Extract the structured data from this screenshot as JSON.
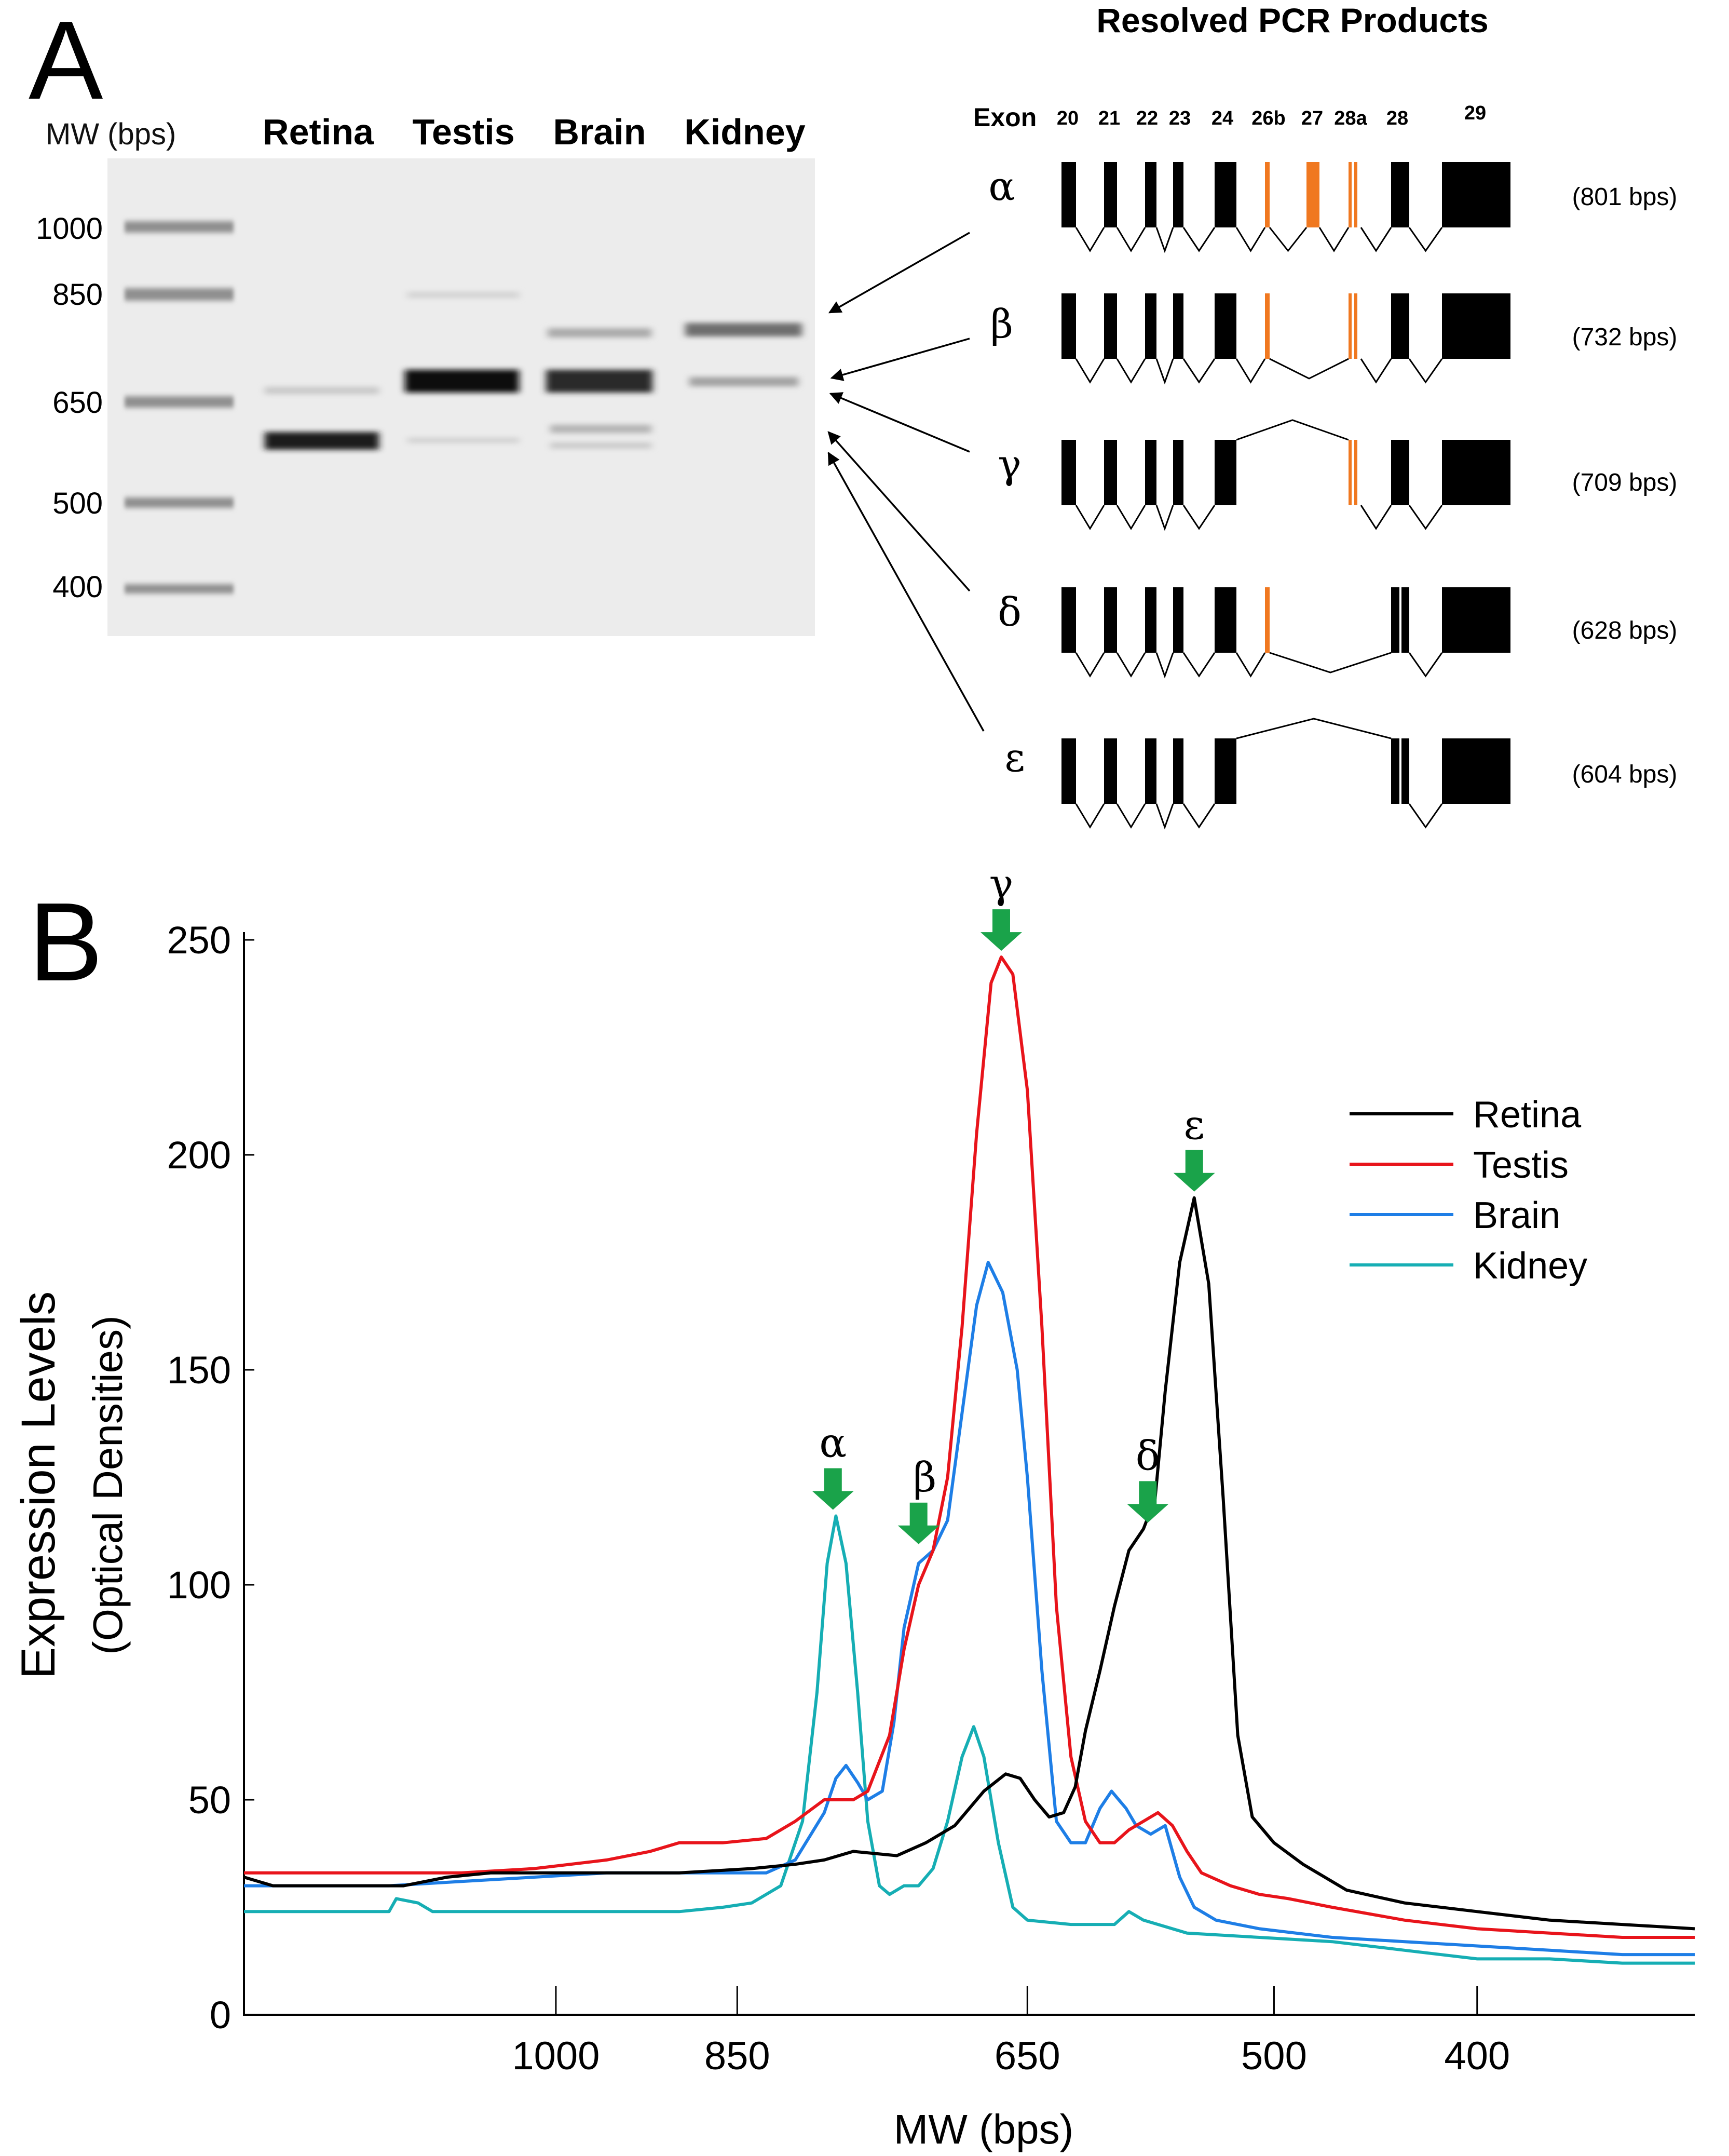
{
  "panelA": {
    "letter": "A",
    "mw_label": "MW (bps)",
    "lanes": [
      "Retina",
      "Testis",
      "Brain",
      "Kidney"
    ],
    "ladder": [
      "1000",
      "850",
      "650",
      "500",
      "400"
    ],
    "diagram_title": "Resolved PCR Products",
    "exon_label": "Exon",
    "exons": [
      "20",
      "21",
      "22",
      "23",
      "24",
      "26b",
      "27",
      "28a",
      "28",
      "29"
    ],
    "products": [
      {
        "symbol": "α",
        "size": "(801 bps)"
      },
      {
        "symbol": "β",
        "size": "(732 bps)"
      },
      {
        "symbol": "γ",
        "size": "(709 bps)"
      },
      {
        "symbol": "δ",
        "size": "(628 bps)"
      },
      {
        "symbol": "ε",
        "size": "(604 bps)"
      }
    ],
    "colors": {
      "exon": "#000000",
      "alt_exon": "#f07820"
    }
  },
  "panelB": {
    "letter": "B",
    "peak_labels": [
      "α",
      "β",
      "γ",
      "δ",
      "ε"
    ],
    "arrow_color": "#1aa34a"
  },
  "chart_data": {
    "type": "line",
    "xlabel": "MW (bps)",
    "ylabel": "Expression Levels",
    "ylabel2": "(Optical Densities)",
    "x_ticks": [
      "1000",
      "850",
      "650",
      "500",
      "400"
    ],
    "y_ticks": [
      "0",
      "50",
      "100",
      "150",
      "200",
      "250"
    ],
    "ylim": [
      0,
      250
    ],
    "grid": false,
    "legend_position": "right",
    "x_unit": "lane position (0 = left end of axis, 100 = right end; MW ticks at 21.5, 34, 54, 71, 85)",
    "series": [
      {
        "name": "Retina",
        "color": "#000000",
        "points": [
          [
            0,
            32
          ],
          [
            2,
            30
          ],
          [
            5,
            30
          ],
          [
            8,
            30
          ],
          [
            11,
            30
          ],
          [
            14,
            32
          ],
          [
            17,
            33
          ],
          [
            20,
            33
          ],
          [
            25,
            33
          ],
          [
            30,
            33
          ],
          [
            35,
            34
          ],
          [
            38,
            35
          ],
          [
            40,
            36
          ],
          [
            42,
            38
          ],
          [
            45,
            37
          ],
          [
            47,
            40
          ],
          [
            49,
            44
          ],
          [
            51,
            52
          ],
          [
            52.5,
            56
          ],
          [
            53.5,
            55
          ],
          [
            54.5,
            50
          ],
          [
            55.5,
            46
          ],
          [
            56.5,
            47
          ],
          [
            57.3,
            53
          ],
          [
            58,
            66
          ],
          [
            59,
            80
          ],
          [
            60,
            95
          ],
          [
            61,
            108
          ],
          [
            62,
            113
          ],
          [
            62.8,
            120
          ],
          [
            63.5,
            145
          ],
          [
            64.5,
            175
          ],
          [
            65.5,
            190
          ],
          [
            66.5,
            170
          ],
          [
            67.5,
            120
          ],
          [
            68.5,
            65
          ],
          [
            69.5,
            46
          ],
          [
            71,
            40
          ],
          [
            73,
            35
          ],
          [
            76,
            29
          ],
          [
            80,
            26
          ],
          [
            85,
            24
          ],
          [
            90,
            22
          ],
          [
            95,
            21
          ],
          [
            100,
            20
          ]
        ]
      },
      {
        "name": "Testis",
        "color": "#e8141b",
        "points": [
          [
            0,
            33
          ],
          [
            5,
            33
          ],
          [
            10,
            33
          ],
          [
            15,
            33
          ],
          [
            20,
            34
          ],
          [
            25,
            36
          ],
          [
            28,
            38
          ],
          [
            30,
            40
          ],
          [
            33,
            40
          ],
          [
            36,
            41
          ],
          [
            38,
            45
          ],
          [
            40,
            50
          ],
          [
            42,
            50
          ],
          [
            43,
            52
          ],
          [
            44.5,
            65
          ],
          [
            45.5,
            85
          ],
          [
            46.5,
            100
          ],
          [
            47.5,
            108
          ],
          [
            48.5,
            125
          ],
          [
            49.5,
            160
          ],
          [
            50.5,
            205
          ],
          [
            51.5,
            240
          ],
          [
            52.2,
            246
          ],
          [
            53,
            242
          ],
          [
            54,
            215
          ],
          [
            55,
            160
          ],
          [
            56,
            95
          ],
          [
            57,
            60
          ],
          [
            58,
            45
          ],
          [
            59,
            40
          ],
          [
            60,
            40
          ],
          [
            61,
            43
          ],
          [
            62,
            45
          ],
          [
            63,
            47
          ],
          [
            64,
            44
          ],
          [
            65,
            38
          ],
          [
            66,
            33
          ],
          [
            68,
            30
          ],
          [
            70,
            28
          ],
          [
            72,
            27
          ],
          [
            75,
            25
          ],
          [
            80,
            22
          ],
          [
            85,
            20
          ],
          [
            90,
            19
          ],
          [
            95,
            18
          ],
          [
            100,
            18
          ]
        ]
      },
      {
        "name": "Brain",
        "color": "#1e7ee6",
        "points": [
          [
            0,
            30
          ],
          [
            5,
            30
          ],
          [
            10,
            30
          ],
          [
            15,
            31
          ],
          [
            20,
            32
          ],
          [
            25,
            33
          ],
          [
            28,
            33
          ],
          [
            32,
            33
          ],
          [
            36,
            33
          ],
          [
            38,
            36
          ],
          [
            40,
            47
          ],
          [
            40.8,
            55
          ],
          [
            41.5,
            58
          ],
          [
            42.3,
            54
          ],
          [
            43,
            50
          ],
          [
            44,
            52
          ],
          [
            44.8,
            68
          ],
          [
            45.5,
            90
          ],
          [
            46.5,
            105
          ],
          [
            47.5,
            108
          ],
          [
            48.5,
            115
          ],
          [
            49.5,
            140
          ],
          [
            50.5,
            165
          ],
          [
            51.3,
            175
          ],
          [
            52.3,
            168
          ],
          [
            53.3,
            150
          ],
          [
            54,
            125
          ],
          [
            55,
            80
          ],
          [
            56,
            45
          ],
          [
            57,
            40
          ],
          [
            58,
            40
          ],
          [
            59,
            48
          ],
          [
            59.8,
            52
          ],
          [
            60.8,
            48
          ],
          [
            61.5,
            44
          ],
          [
            62.5,
            42
          ],
          [
            63.5,
            44
          ],
          [
            64.5,
            32
          ],
          [
            65.5,
            25
          ],
          [
            67,
            22
          ],
          [
            70,
            20
          ],
          [
            75,
            18
          ],
          [
            80,
            17
          ],
          [
            85,
            16
          ],
          [
            90,
            15
          ],
          [
            95,
            14
          ],
          [
            100,
            14
          ]
        ]
      },
      {
        "name": "Kidney",
        "color": "#16aeb4",
        "points": [
          [
            0,
            24
          ],
          [
            5,
            24
          ],
          [
            10,
            24
          ],
          [
            10.5,
            27
          ],
          [
            12,
            26
          ],
          [
            13,
            24
          ],
          [
            20,
            24
          ],
          [
            25,
            24
          ],
          [
            30,
            24
          ],
          [
            33,
            25
          ],
          [
            35,
            26
          ],
          [
            37,
            30
          ],
          [
            38.5,
            45
          ],
          [
            39.5,
            75
          ],
          [
            40.2,
            105
          ],
          [
            40.8,
            116
          ],
          [
            41.5,
            105
          ],
          [
            42.3,
            75
          ],
          [
            43,
            45
          ],
          [
            43.8,
            30
          ],
          [
            44.5,
            28
          ],
          [
            45.5,
            30
          ],
          [
            46.5,
            30
          ],
          [
            47.5,
            34
          ],
          [
            48.5,
            45
          ],
          [
            49.5,
            60
          ],
          [
            50.3,
            67
          ],
          [
            51,
            60
          ],
          [
            52,
            40
          ],
          [
            53,
            25
          ],
          [
            54,
            22
          ],
          [
            57,
            21
          ],
          [
            60,
            21
          ],
          [
            61,
            24
          ],
          [
            62,
            22
          ],
          [
            65,
            19
          ],
          [
            70,
            18
          ],
          [
            75,
            17
          ],
          [
            80,
            15
          ],
          [
            85,
            13
          ],
          [
            90,
            13
          ],
          [
            95,
            12
          ],
          [
            100,
            12
          ]
        ]
      }
    ],
    "peaks": [
      {
        "label": "α",
        "x": 40.6,
        "y": 116
      },
      {
        "label": "β",
        "x": 46.5,
        "y": 108
      },
      {
        "label": "γ",
        "x": 52.2,
        "y": 246
      },
      {
        "label": "δ",
        "x": 62.3,
        "y": 113
      },
      {
        "label": "ε",
        "x": 65.5,
        "y": 190
      }
    ]
  }
}
